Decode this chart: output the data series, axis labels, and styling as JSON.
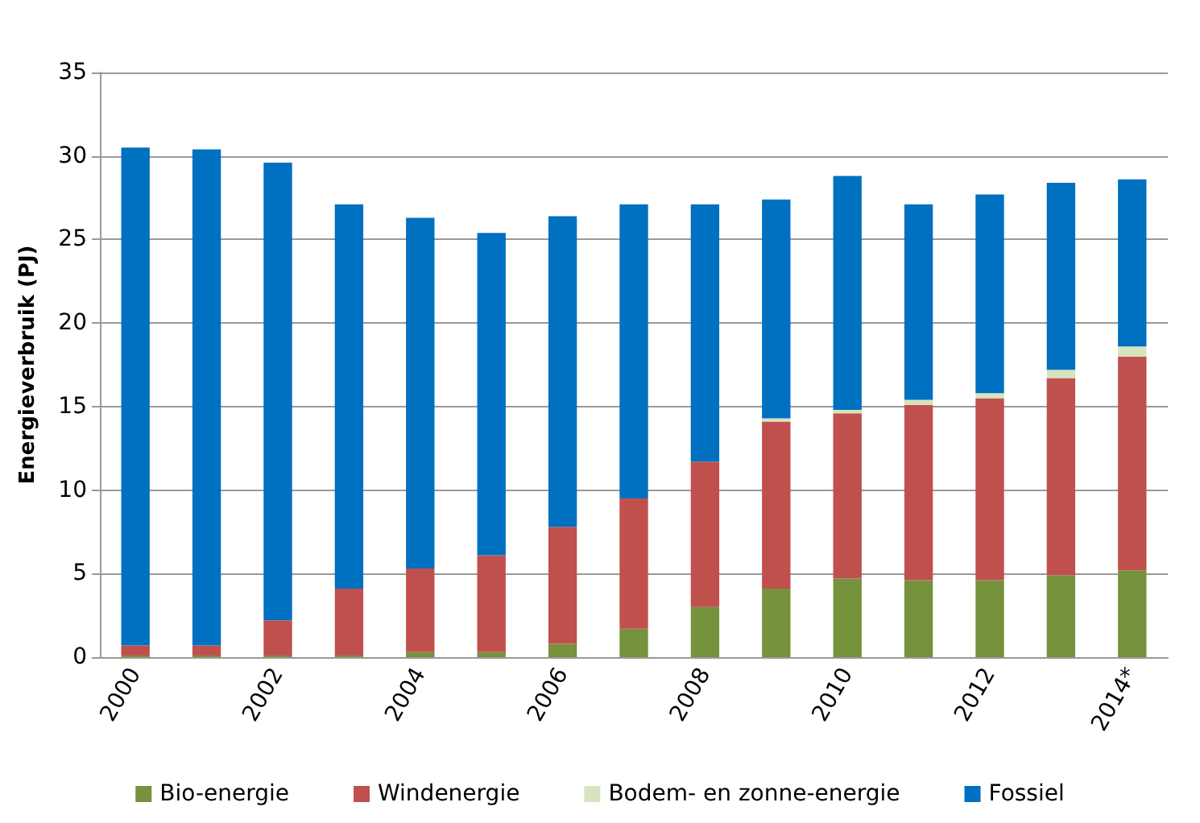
{
  "chart_data": {
    "type": "bar",
    "stacked": true,
    "ylabel": "Energieverbruik (PJ)",
    "categories": [
      "2000",
      null,
      "2002",
      null,
      "2004",
      null,
      "2006",
      null,
      "2008",
      null,
      "2010",
      null,
      "2012",
      null,
      "2014*"
    ],
    "series": [
      {
        "name": "Bio-energie",
        "color": "#76923c",
        "values": [
          0.1,
          0.1,
          0.1,
          0.1,
          0.3,
          0.3,
          0.8,
          1.7,
          3.0,
          4.1,
          4.7,
          4.6,
          4.6,
          4.9,
          5.2
        ]
      },
      {
        "name": "Windenergie",
        "color": "#c0504d",
        "values": [
          0.6,
          0.6,
          2.1,
          4.0,
          5.0,
          5.8,
          7.0,
          7.8,
          8.7,
          10.0,
          9.9,
          10.5,
          10.9,
          11.8,
          12.8
        ]
      },
      {
        "name": "Bodem- en zonne-energie",
        "color": "#d7e4bd",
        "values": [
          0,
          0,
          0,
          0,
          0,
          0,
          0,
          0,
          0,
          0.2,
          0.2,
          0.3,
          0.3,
          0.5,
          0.6
        ]
      },
      {
        "name": "Fossiel",
        "color": "#0070c0",
        "values": [
          29.8,
          29.7,
          27.4,
          23.0,
          21.0,
          19.3,
          18.6,
          17.6,
          15.4,
          13.1,
          14.0,
          11.7,
          11.9,
          11.2,
          10.0
        ]
      }
    ],
    "ylim": [
      0,
      35
    ],
    "yticks": [
      0,
      5,
      10,
      15,
      20,
      25,
      30,
      35
    ],
    "grid": "y",
    "legend": "bottom"
  }
}
